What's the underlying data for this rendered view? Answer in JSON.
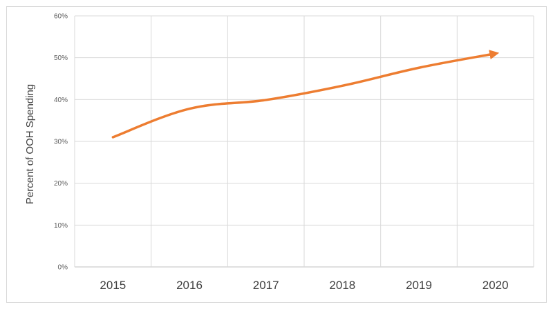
{
  "chart_data": {
    "type": "line",
    "title": "",
    "xlabel": "",
    "ylabel": "Percent of OOH Spending",
    "categories": [
      "2015",
      "2016",
      "2017",
      "2018",
      "2019",
      "2020"
    ],
    "y_tick_labels": [
      "0%",
      "10%",
      "20%",
      "30%",
      "40%",
      "50%",
      "60%"
    ],
    "ylim": [
      0,
      60
    ],
    "grid": true,
    "legend": "none",
    "series": [
      {
        "values": [
          31,
          37.8,
          39.9,
          43.3,
          47.6,
          51
        ],
        "color": "#ED7D31",
        "line_end": "arrow"
      }
    ]
  }
}
